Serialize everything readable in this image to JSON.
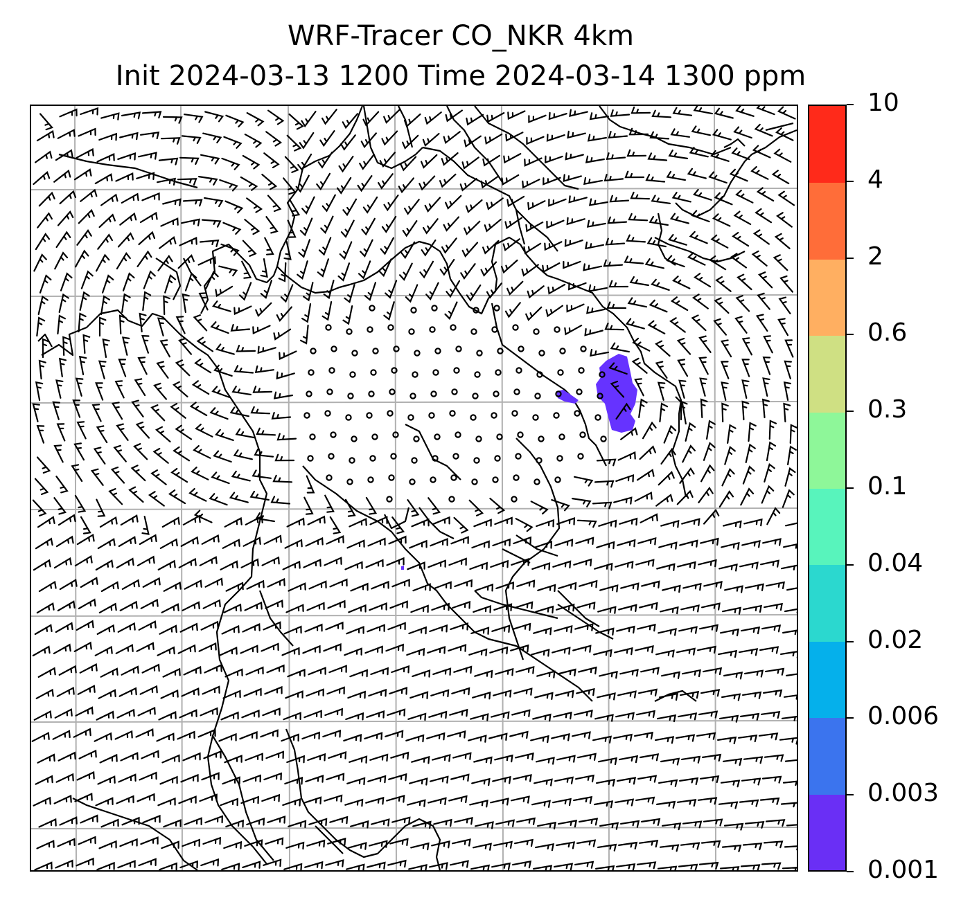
{
  "title": {
    "line1": "WRF-Tracer CO_NKR 4km",
    "line2": "Init 2024-03-13 1200 Time 2024-03-14 1300 ppm"
  },
  "map": {
    "background": "#ffffff",
    "gridlines": true,
    "gridline_color": "#b0b0b0",
    "coastline_color": "#000000",
    "wind_barbs": true,
    "calm_circles": true,
    "plume_color": "#6633ff"
  },
  "colorbar": {
    "position": "right",
    "levels": [
      {
        "label": "0.001",
        "color": "#6a2ff5"
      },
      {
        "label": "0.003",
        "color": "#3b74ee"
      },
      {
        "label": "0.006",
        "color": "#05b0eb"
      },
      {
        "label": "0.02",
        "color": "#2bd8cf"
      },
      {
        "label": "0.04",
        "color": "#58f4bc"
      },
      {
        "label": "0.1",
        "color": "#8ef799"
      },
      {
        "label": "0.3",
        "color": "#cfe083"
      },
      {
        "label": "0.6",
        "color": "#ffaf61"
      },
      {
        "label": "2",
        "color": "#ff6d39"
      },
      {
        "label": "4",
        "color": "#ff2a1a"
      },
      {
        "label": "10",
        "color": ""
      }
    ]
  }
}
